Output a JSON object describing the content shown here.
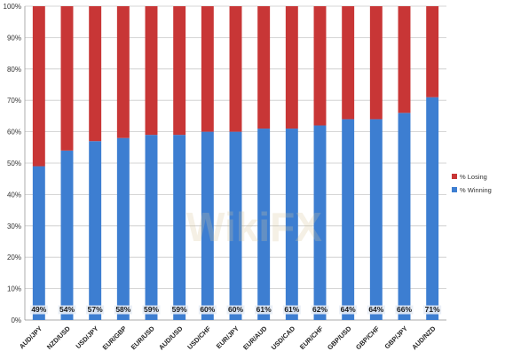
{
  "chart_data": {
    "type": "bar",
    "stacked": true,
    "orientation": "vertical",
    "categories": [
      "AUD/JPY",
      "NZD/USD",
      "USD/JPY",
      "EUR/GBP",
      "EUR/USD",
      "AUD/USD",
      "USD/CHF",
      "EUR/JPY",
      "EUR/AUD",
      "USD/CAD",
      "EUR/CHF",
      "GBP/USD",
      "GBP/CHF",
      "GBP/JPY",
      "AUD/NZD"
    ],
    "series": [
      {
        "name": "% Winning",
        "color": "#3d7ed1",
        "values": [
          49,
          54,
          57,
          58,
          59,
          59,
          60,
          60,
          61,
          61,
          62,
          64,
          64,
          66,
          71
        ]
      },
      {
        "name": "% Losing",
        "color": "#c83636",
        "values": [
          51,
          46,
          43,
          42,
          41,
          41,
          40,
          40,
          39,
          39,
          38,
          36,
          36,
          34,
          29
        ]
      }
    ],
    "data_labels": [
      "49%",
      "54%",
      "57%",
      "58%",
      "59%",
      "59%",
      "60%",
      "60%",
      "61%",
      "61%",
      "62%",
      "64%",
      "64%",
      "66%",
      "71%"
    ],
    "y_ticks": [
      "0%",
      "10%",
      "20%",
      "30%",
      "40%",
      "50%",
      "60%",
      "70%",
      "80%",
      "90%",
      "100%"
    ],
    "ylim": [
      0,
      100
    ],
    "title": "",
    "xlabel": "",
    "ylabel": "",
    "grid": true,
    "legend": {
      "position": "right",
      "items": [
        {
          "label": "% Losing",
          "color": "#c83636"
        },
        {
          "label": "% Winning",
          "color": "#3d7ed1"
        }
      ]
    },
    "watermark": "WikiFX"
  }
}
